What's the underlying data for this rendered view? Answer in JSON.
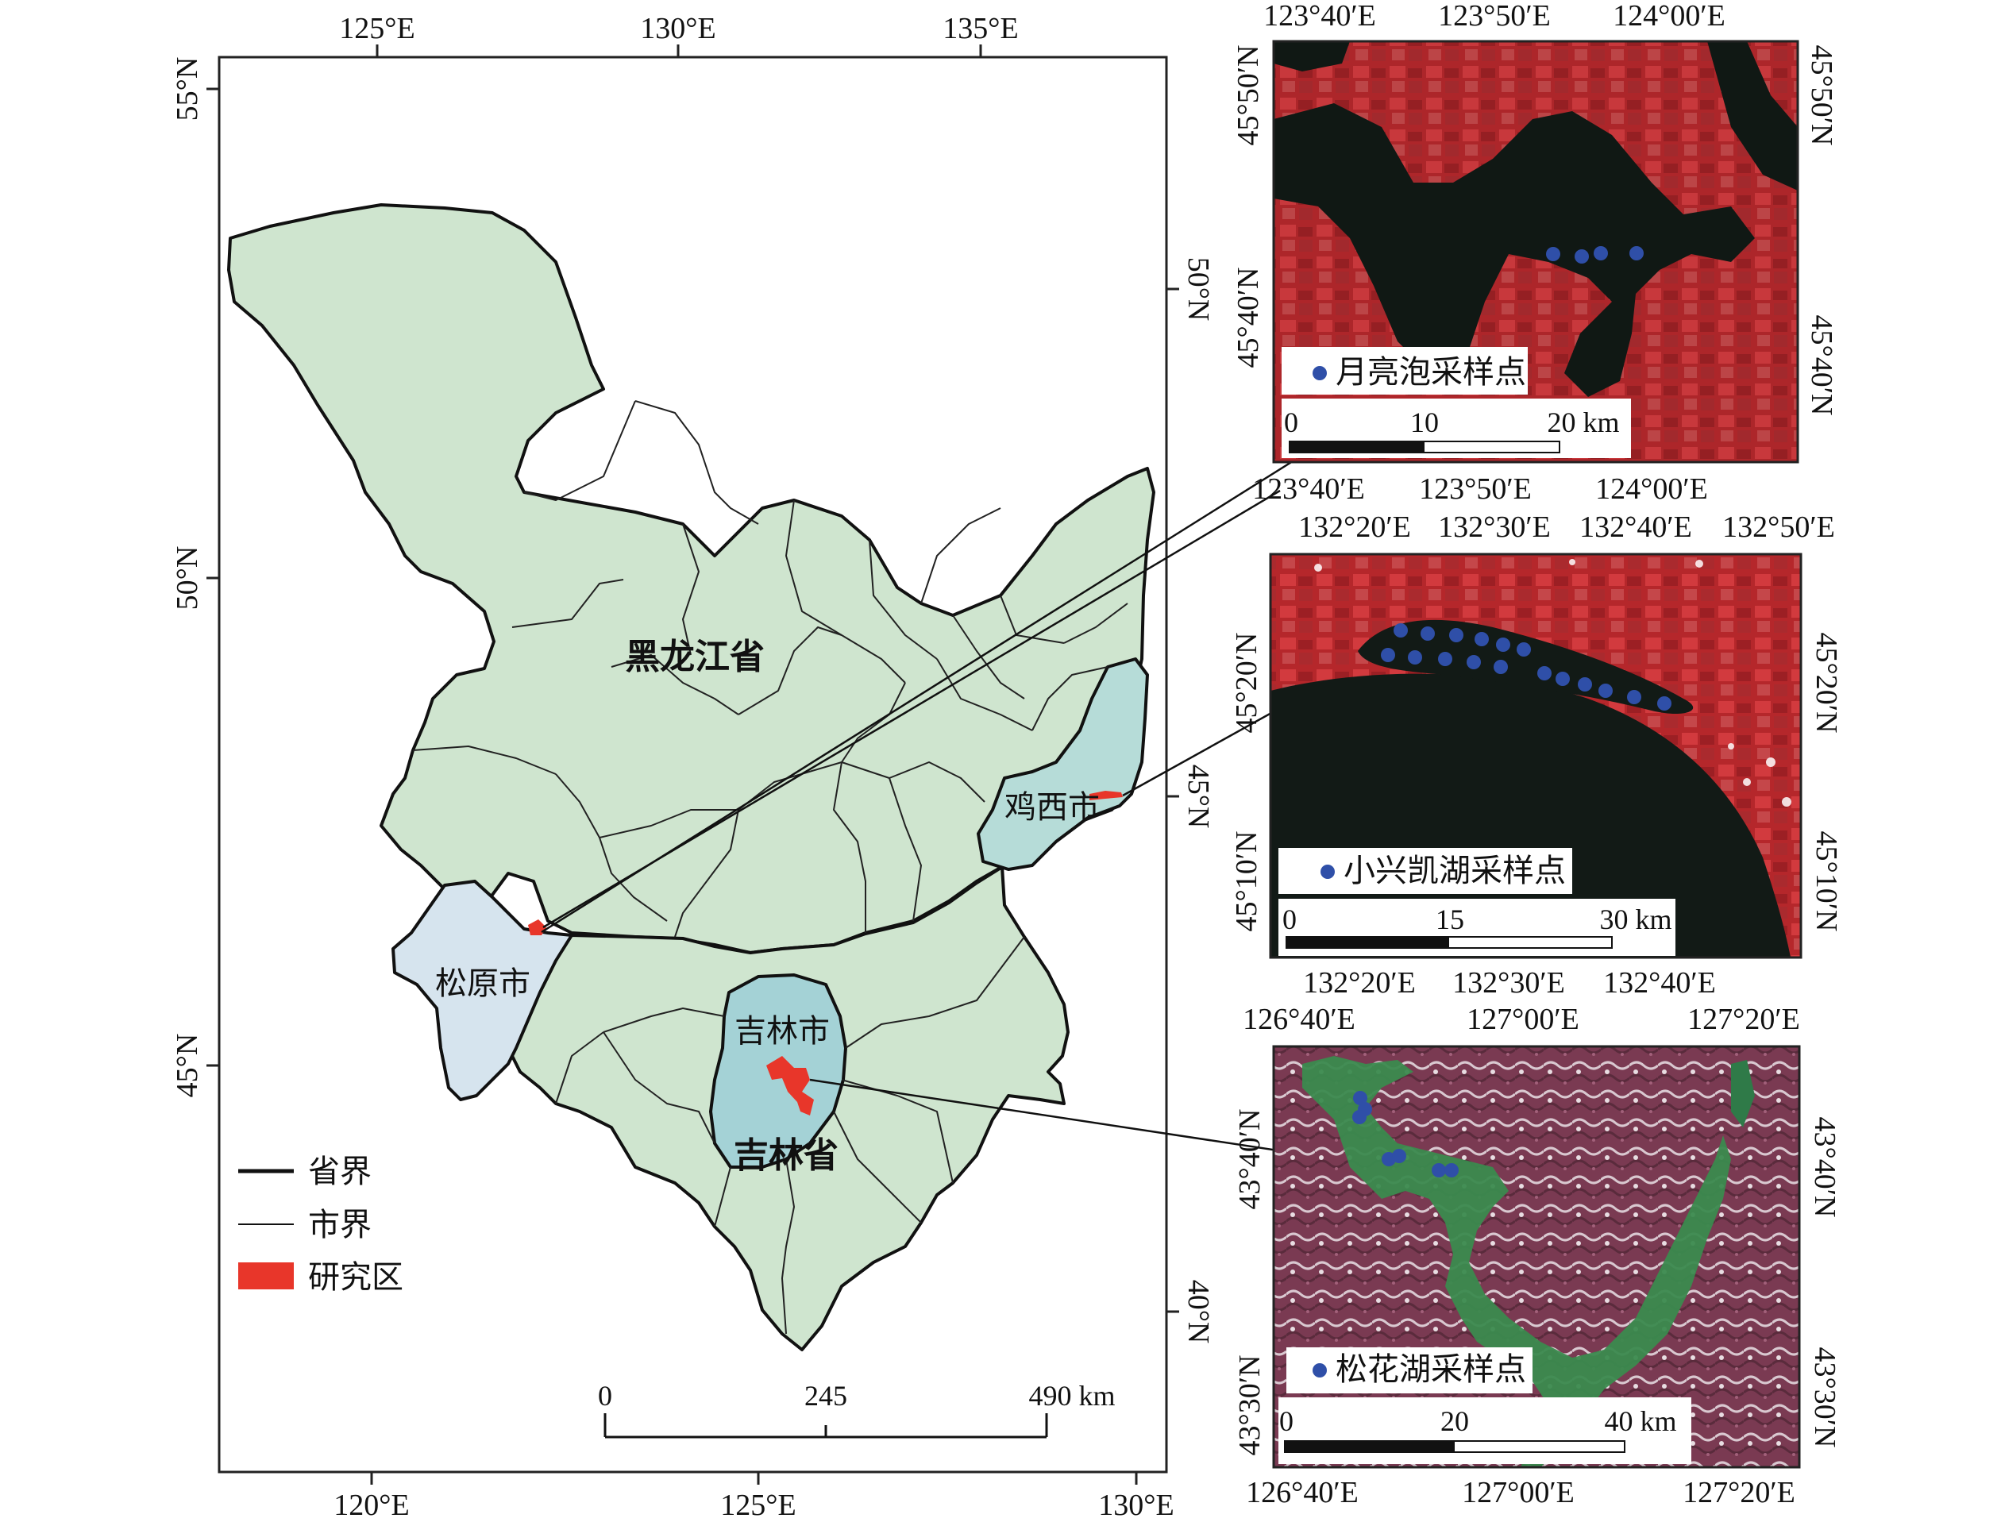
{
  "main_map": {
    "top_lon_labels": [
      "125°E",
      "130°E",
      "135°E"
    ],
    "bottom_lon_labels": [
      "120°E",
      "125°E",
      "130°E"
    ],
    "left_lat_labels": [
      "55°N",
      "50°N",
      "45°N"
    ],
    "right_lat_labels": [
      "50°N",
      "45°N",
      "40°N"
    ],
    "provinces": [
      "黑龙江省",
      "吉林省"
    ],
    "cities": [
      "鸡西市",
      "松原市",
      "吉林市"
    ],
    "legend": [
      "省界",
      "市界",
      "研究区"
    ],
    "scalebar": [
      "0",
      "245",
      "490 km"
    ],
    "colors": {
      "land": "#cfe5cf",
      "songyuan": "#d6e4ee",
      "jilin_city": "#a4d2d6",
      "jixi": "#b6dcd8",
      "study_area": "#e8362a"
    }
  },
  "inset_yueliang": {
    "top_lon_labels": [
      "123°40′E",
      "123°50′E",
      "124°00′E"
    ],
    "bottom_lon_labels": [
      "123°40′E",
      "123°50′E",
      "124°00′E"
    ],
    "left_lat_labels": [
      "45°50′N",
      "45°40′N"
    ],
    "right_lat_labels": [
      "45°50′N",
      "45°40′N"
    ],
    "legend": "月亮泡采样点",
    "scalebar": [
      "0",
      "10",
      "20 km"
    ]
  },
  "inset_xingkai": {
    "top_lon_labels": [
      "132°20′E",
      "132°30′E",
      "132°40′E",
      "132°50′E"
    ],
    "bottom_lon_labels": [
      "132°20′E",
      "132°30′E",
      "132°40′E"
    ],
    "left_lat_labels": [
      "45°20′N",
      "45°10′N"
    ],
    "right_lat_labels": [
      "45°20′N",
      "45°10′N"
    ],
    "legend": "小兴凯湖采样点",
    "scalebar": [
      "0",
      "15",
      "30 km"
    ]
  },
  "inset_songhua": {
    "top_lon_labels": [
      "126°40′E",
      "127°00′E",
      "127°20′E"
    ],
    "bottom_lon_labels": [
      "126°40′E",
      "127°00′E",
      "127°20′E"
    ],
    "left_lat_labels": [
      "43°40′N",
      "43°30′N"
    ],
    "right_lat_labels": [
      "43°40′N",
      "43°30′N"
    ],
    "legend": "松花湖采样点",
    "scalebar": [
      "0",
      "20",
      "40 km"
    ]
  },
  "sample_point_color": "#2f4fa8"
}
